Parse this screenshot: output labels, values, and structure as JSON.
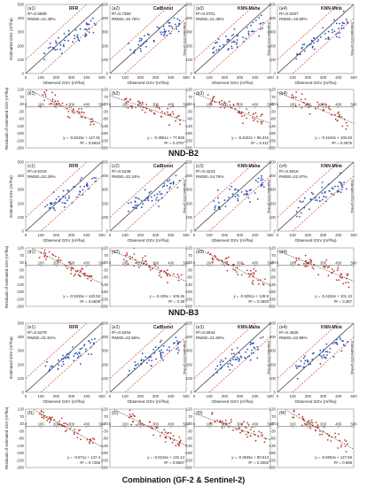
{
  "figure": {
    "section_titles": [
      "NND-B2",
      "NND-B3",
      "Combination (GF-2 & Sentinel-2)"
    ],
    "scatter_xlabel": "Observed GSV (m³/ha)",
    "scatter_ylabel": "Estimated GSV (m³/ha)",
    "residual_ylabel": "Residuals of estimated GSV (m³/ha)",
    "colors": {
      "points": "#2b4fb5",
      "residual_points": "#c0392b",
      "one_to_one": "#444444",
      "bounds": "#d9443a",
      "trend": "#333333"
    }
  },
  "chart_data": [
    {
      "panel": "a1",
      "type": "scatter",
      "title": "RFR",
      "r2_label": "R²=0.5689",
      "rmse_label": "RMSE=21.39%",
      "xlim": [
        0,
        500
      ],
      "ylim": [
        0,
        500
      ],
      "xticks": [
        "0",
        "100",
        "200",
        "300",
        "400",
        "500"
      ],
      "yticks": [
        "0",
        "100",
        "200",
        "300",
        "400",
        "500"
      ]
    },
    {
      "panel": "a2",
      "type": "scatter",
      "title": "CatBoost",
      "r2_label": "R²=0.7350",
      "rmse_label": "RMSE=16.76%",
      "xlim": [
        0,
        500
      ],
      "ylim": [
        0,
        500
      ],
      "xticks": [
        "0",
        "100",
        "200",
        "300",
        "400",
        "500"
      ],
      "yticks": [
        "0",
        "100",
        "200",
        "300",
        "400",
        "500"
      ]
    },
    {
      "panel": "a3",
      "type": "scatter",
      "title": "KNN-Maha",
      "r2_label": "R²=0.5701",
      "rmse_label": "RMSE=21.36%",
      "xlim": [
        0,
        500
      ],
      "ylim": [
        0,
        500
      ],
      "xticks": [
        "0",
        "100",
        "200",
        "300",
        "400",
        "500"
      ],
      "yticks": [
        "0",
        "100",
        "200",
        "300",
        "400",
        "500"
      ]
    },
    {
      "panel": "a4",
      "type": "scatter",
      "title": "KNN-Mink",
      "r2_label": "R²=0.6267",
      "rmse_label": "RMSE=19.90%",
      "xlim": [
        0,
        500
      ],
      "ylim": [
        0,
        500
      ],
      "xticks": [
        "0",
        "100",
        "200",
        "300",
        "400",
        "500"
      ],
      "yticks": [
        "0",
        "100",
        "200",
        "300",
        "400",
        "500"
      ]
    },
    {
      "panel": "b1",
      "type": "residual",
      "equation": "y = -0.5015x + 127.91",
      "r2_label": "R² = 0.5843",
      "slope": -0.5015,
      "intercept": 127.91,
      "xlim": [
        0,
        500
      ],
      "ylim": [
        -280,
        120
      ],
      "xticks": [
        "0",
        "100",
        "200",
        "300",
        "400",
        "500"
      ],
      "yticks": [
        "120",
        "70",
        "20",
        "-30",
        "-80",
        "-130",
        "-180",
        "-230",
        "-280"
      ]
    },
    {
      "panel": "b2",
      "type": "residual",
      "equation": "y = -0.3551x + 77.926",
      "r2_label": "R² = 0.3757",
      "slope": -0.3551,
      "intercept": 77.926,
      "xlim": [
        0,
        500
      ],
      "ylim": [
        -280,
        120
      ],
      "xticks": [
        "0",
        "100",
        "200",
        "300",
        "400",
        "500"
      ],
      "yticks": [
        "120",
        "70",
        "20",
        "-30",
        "-80",
        "-130",
        "-180",
        "-230",
        "-280"
      ]
    },
    {
      "panel": "b3",
      "type": "residual",
      "equation": "y = -0.4152x + 95.316",
      "r2_label": "R² = 0.411",
      "slope": -0.4152,
      "intercept": 95.316,
      "xlim": [
        0,
        500
      ],
      "ylim": [
        -280,
        120
      ],
      "xticks": [
        "0",
        "100",
        "200",
        "300",
        "400",
        "500"
      ],
      "yticks": [
        "120",
        "70",
        "20",
        "-30",
        "-80",
        "-130",
        "-180",
        "-230",
        "-280"
      ]
    },
    {
      "panel": "b4",
      "type": "residual",
      "equation": "y = -0.4243x + 100.83",
      "r2_label": "R² = 0.4876",
      "slope": -0.4243,
      "intercept": 100.83,
      "xlim": [
        0,
        500
      ],
      "ylim": [
        -280,
        120
      ],
      "xticks": [
        "0",
        "100",
        "200",
        "300",
        "400",
        "500"
      ],
      "yticks": [
        "120",
        "70",
        "20",
        "-30",
        "-80",
        "-130",
        "-180",
        "-230",
        "-280"
      ]
    },
    {
      "panel": "c1",
      "type": "scatter",
      "title": "RFR",
      "r2_label": "R²=0.5319",
      "rmse_label": "RMSE=22.29%",
      "xlim": [
        0,
        500
      ],
      "ylim": [
        0,
        500
      ],
      "xticks": [
        "0",
        "100",
        "200",
        "300",
        "400",
        "500"
      ],
      "yticks": [
        "0",
        "100",
        "200",
        "300",
        "400",
        "500"
      ]
    },
    {
      "panel": "c2",
      "type": "scatter",
      "title": "CatBoost",
      "r2_label": "R²=0.5338",
      "rmse_label": "RMSE=22.24%",
      "xlim": [
        0,
        500
      ],
      "ylim": [
        0,
        500
      ],
      "xticks": [
        "0",
        "100",
        "200",
        "300",
        "400",
        "500"
      ],
      "yticks": [
        "0",
        "100",
        "200",
        "300",
        "400",
        "500"
      ]
    },
    {
      "panel": "c3",
      "type": "scatter",
      "title": "KNN-Maha",
      "r2_label": "R²=0.4223",
      "rmse_label": "RMSE=24.76%",
      "xlim": [
        0,
        500
      ],
      "ylim": [
        0,
        500
      ],
      "xticks": [
        "0",
        "100",
        "200",
        "300",
        "400",
        "500"
      ],
      "yticks": [
        "0",
        "100",
        "200",
        "300",
        "400",
        "500"
      ]
    },
    {
      "panel": "c4",
      "type": "scatter",
      "title": "KNN-Mink",
      "r2_label": "R²=0.5019",
      "rmse_label": "RMSE=22.67%",
      "xlim": [
        0,
        500
      ],
      "ylim": [
        0,
        500
      ],
      "xticks": [
        "0",
        "100",
        "200",
        "300",
        "400",
        "500"
      ],
      "yticks": [
        "0",
        "100",
        "200",
        "300",
        "400",
        "500"
      ]
    },
    {
      "panel": "d1",
      "type": "residual",
      "equation": "y = -0.5315x + 140.53",
      "r2_label": "R² = 0.6509",
      "slope": -0.5315,
      "intercept": 140.53,
      "xlim": [
        0,
        500
      ],
      "ylim": [
        -280,
        120
      ],
      "xticks": [
        "0",
        "100",
        "200",
        "300",
        "400",
        "500"
      ],
      "yticks": [
        "120",
        "70",
        "20",
        "-30",
        "-80",
        "-130",
        "-180",
        "-230",
        "-280"
      ]
    },
    {
      "panel": "d2",
      "type": "residual",
      "equation": "y = -0.426x + 105.45",
      "r2_label": "R² = 0.39",
      "slope": -0.426,
      "intercept": 105.45,
      "xlim": [
        0,
        500
      ],
      "ylim": [
        -280,
        120
      ],
      "xticks": [
        "0",
        "100",
        "200",
        "300",
        "400",
        "500"
      ],
      "yticks": [
        "120",
        "70",
        "20",
        "-30",
        "-80",
        "-130",
        "-180",
        "-230",
        "-280"
      ]
    },
    {
      "panel": "d3",
      "type": "residual",
      "equation": "y = -0.5351x + 128.9",
      "r2_label": "R² = 0.4893",
      "slope": -0.5351,
      "intercept": 128.9,
      "xlim": [
        0,
        500
      ],
      "ylim": [
        -280,
        120
      ],
      "xticks": [
        "0",
        "100",
        "200",
        "300",
        "400",
        "500"
      ],
      "yticks": [
        "120",
        "70",
        "20",
        "-30",
        "-80",
        "-130",
        "-180",
        "-230",
        "-280"
      ]
    },
    {
      "panel": "d4",
      "type": "residual",
      "equation": "y = -0.4153x + 101.13",
      "r2_label": "R² = 0.357",
      "slope": -0.4153,
      "intercept": 101.13,
      "xlim": [
        0,
        500
      ],
      "ylim": [
        -280,
        120
      ],
      "xticks": [
        "0",
        "100",
        "200",
        "300",
        "400",
        "500"
      ],
      "yticks": [
        "120",
        "70",
        "20",
        "-30",
        "-80",
        "-130",
        "-180",
        "-230",
        "-280"
      ]
    },
    {
      "panel": "e1",
      "type": "scatter",
      "title": "RFR",
      "r2_label": "R²=0.5479",
      "rmse_label": "RMSE=21.91%",
      "xlim": [
        0,
        500
      ],
      "ylim": [
        0,
        500
      ],
      "xticks": [
        "0",
        "100",
        "200",
        "300",
        "400",
        "500"
      ],
      "yticks": [
        "0",
        "100",
        "200",
        "300",
        "400",
        "500"
      ]
    },
    {
      "panel": "e2",
      "type": "scatter",
      "title": "CatBoost",
      "r2_label": "R²=0.5204",
      "rmse_label": "RMSE=22.56%",
      "xlim": [
        0,
        500
      ],
      "ylim": [
        0,
        500
      ],
      "xticks": [
        "0",
        "100",
        "200",
        "300",
        "400",
        "500"
      ],
      "yticks": [
        "0",
        "100",
        "200",
        "300",
        "400",
        "500"
      ]
    },
    {
      "panel": "e3",
      "type": "scatter",
      "title": "KNN-Maha",
      "r2_label": "R²=0.5644",
      "rmse_label": "RMSE=21.50%",
      "xlim": [
        0,
        500
      ],
      "ylim": [
        0,
        500
      ],
      "xticks": [
        "0",
        "100",
        "200",
        "300",
        "400",
        "500"
      ],
      "yticks": [
        "0",
        "100",
        "200",
        "300",
        "400",
        "500"
      ]
    },
    {
      "panel": "e4",
      "type": "scatter",
      "title": "KNN-Mink",
      "r2_label": "R²=0.4626",
      "rmse_label": "RMSE=23.88%",
      "xlim": [
        0,
        500
      ],
      "ylim": [
        0,
        500
      ],
      "xticks": [
        "0",
        "100",
        "200",
        "300",
        "400",
        "500"
      ],
      "yticks": [
        "0",
        "100",
        "200",
        "300",
        "400",
        "500"
      ]
    },
    {
      "panel": "f1",
      "type": "residual",
      "equation": "y = -0.571x + 147.4",
      "r2_label": "R² = 0.7256",
      "slope": -0.571,
      "intercept": 147.4,
      "xlim": [
        0,
        500
      ],
      "ylim": [
        -280,
        120
      ],
      "xticks": [
        "0",
        "100",
        "200",
        "300",
        "400",
        "500"
      ],
      "yticks": [
        "120",
        "70",
        "20",
        "-30",
        "-80",
        "-130",
        "-180",
        "-230",
        "-280"
      ]
    },
    {
      "panel": "f2",
      "type": "residual",
      "equation": "y = -0.5215x + 132.14",
      "r2_label": "R² = 0.5667",
      "slope": -0.5215,
      "intercept": 132.14,
      "xlim": [
        0,
        500
      ],
      "ylim": [
        -280,
        120
      ],
      "xticks": [
        "0",
        "100",
        "200",
        "300",
        "400",
        "500"
      ],
      "yticks": [
        "120",
        "70",
        "20",
        "-30",
        "-80",
        "-130",
        "-180",
        "-230",
        "-280"
      ]
    },
    {
      "panel": "f3",
      "type": "residual",
      "equation": "y = -0.3646x + 90.513",
      "r2_label": "R² = 0.3052",
      "slope": -0.3646,
      "intercept": 90.513,
      "xlim": [
        0,
        500
      ],
      "ylim": [
        -280,
        120
      ],
      "xticks": [
        "0",
        "100",
        "200",
        "300",
        "400",
        "500"
      ],
      "yticks": [
        "120",
        "70",
        "20",
        "-30",
        "-80",
        "-130",
        "-180",
        "-230",
        "-280"
      ]
    },
    {
      "panel": "f4",
      "type": "residual",
      "equation": "y = -0.6064x + 147.56",
      "r2_label": "R² = 0.688",
      "slope": -0.6064,
      "intercept": 147.56,
      "xlim": [
        0,
        500
      ],
      "ylim": [
        -280,
        120
      ],
      "xticks": [
        "0",
        "100",
        "200",
        "300",
        "400",
        "500"
      ],
      "yticks": [
        "120",
        "70",
        "20",
        "-30",
        "-80",
        "-130",
        "-180",
        "-230",
        "-280"
      ]
    }
  ]
}
